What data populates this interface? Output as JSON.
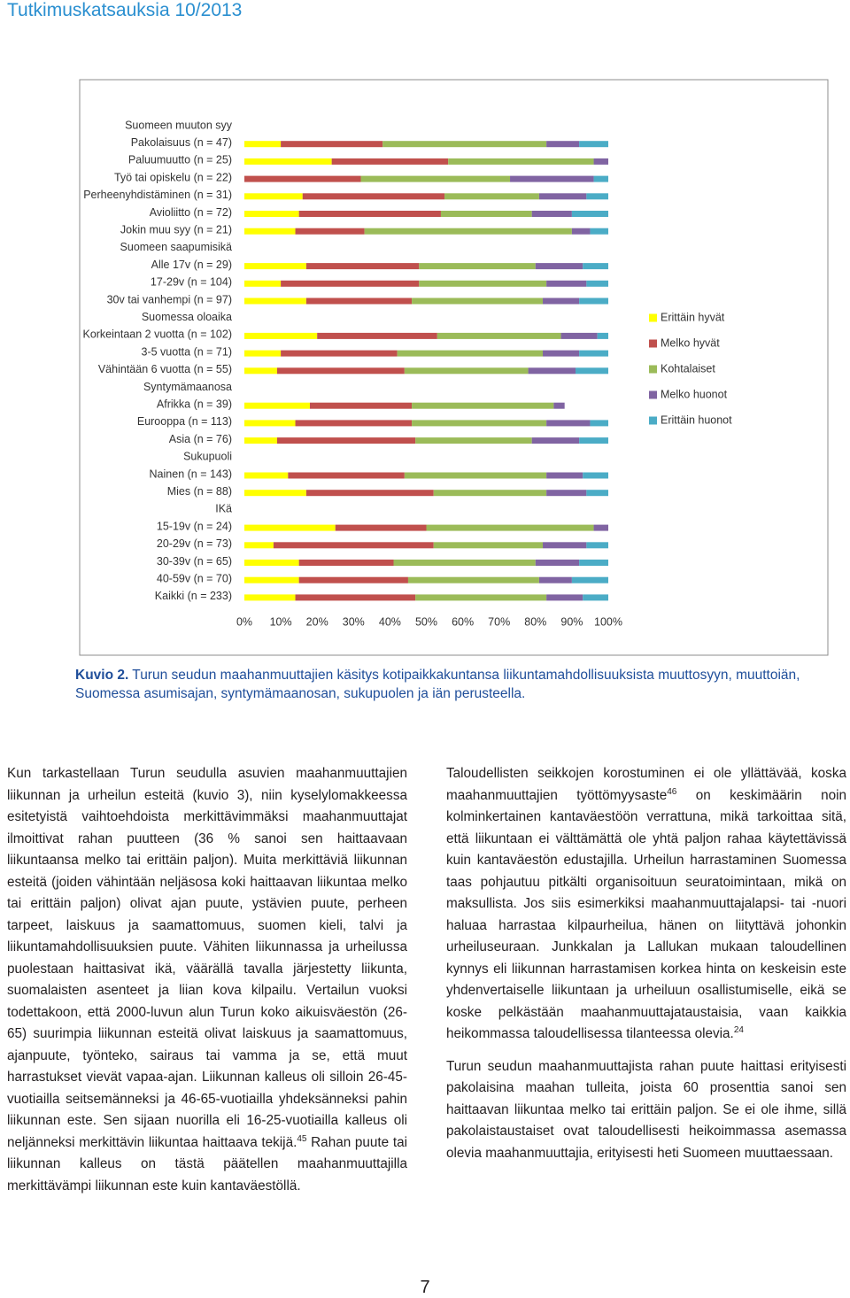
{
  "header": {
    "title": "Tutkimuskatsauksia 10/2013"
  },
  "chart_data": {
    "type": "stacked-bar-horizontal",
    "categories": [
      "Suomeen muuton syy",
      "Pakolaisuus (n = 47)",
      "Paluumuutto (n = 25)",
      "Työ tai opiskelu (n = 22)",
      "Perheenyhdistäminen (n = 31)",
      "Avioliitto (n = 72)",
      "Jokin muu syy (n = 21)",
      "Suomeen saapumisikä",
      "Alle 17v (n = 29)",
      "17-29v (n = 104)",
      "30v tai vanhempi (n = 97)",
      "Suomessa oloaika",
      "Korkeintaan 2 vuotta (n = 102)",
      "3-5 vuotta (n = 71)",
      "Vähintään 6 vuotta (n = 55)",
      "Syntymämaanosa",
      "Afrikka (n = 39)",
      "Eurooppa (n = 113)",
      "Asia (n = 76)",
      "Sukupuoli",
      "Nainen (n = 143)",
      "Mies (n = 88)",
      "IKä",
      "15-19v (n = 24)",
      "20-29v (n = 73)",
      "30-39v (n = 65)",
      "40-59v (n = 70)",
      "Kaikki (n = 233)"
    ],
    "series": [
      {
        "name": "Erittäin hyvät",
        "color": "#ffff00",
        "values": [
          null,
          10,
          24,
          0,
          16,
          15,
          14,
          null,
          17,
          10,
          17,
          null,
          20,
          10,
          9,
          null,
          18,
          14,
          9,
          null,
          12,
          17,
          null,
          25,
          8,
          15,
          15,
          14
        ]
      },
      {
        "name": "Melko hyvät",
        "color": "#c0504d",
        "values": [
          null,
          28,
          32,
          32,
          39,
          39,
          19,
          null,
          31,
          38,
          29,
          null,
          33,
          32,
          35,
          null,
          28,
          32,
          38,
          null,
          32,
          35,
          null,
          25,
          44,
          26,
          30,
          33
        ]
      },
      {
        "name": "Kohtalaiset",
        "color": "#9bbb59",
        "values": [
          null,
          45,
          40,
          41,
          26,
          25,
          57,
          null,
          32,
          35,
          36,
          null,
          34,
          40,
          34,
          null,
          39,
          37,
          32,
          null,
          39,
          31,
          null,
          46,
          30,
          39,
          36,
          36
        ]
      },
      {
        "name": "Melko huonot",
        "color": "#8064a2",
        "values": [
          null,
          9,
          4,
          23,
          13,
          11,
          5,
          null,
          13,
          11,
          10,
          null,
          10,
          10,
          13,
          null,
          3,
          12,
          13,
          null,
          10,
          11,
          null,
          4,
          12,
          12,
          9,
          10
        ]
      },
      {
        "name": "Erittäin huonot",
        "color": "#4bacc6",
        "values": [
          null,
          8,
          0,
          4,
          6,
          10,
          5,
          null,
          7,
          6,
          8,
          null,
          3,
          8,
          9,
          null,
          0,
          5,
          8,
          null,
          7,
          6,
          null,
          0,
          6,
          8,
          10,
          7
        ]
      }
    ],
    "xlim": [
      0,
      100
    ],
    "xticks": [
      {
        "value": 0,
        "label": "0%"
      },
      {
        "value": 10,
        "label": "10%"
      },
      {
        "value": 20,
        "label": "20%"
      },
      {
        "value": 30,
        "label": "30%"
      },
      {
        "value": 40,
        "label": "40%"
      },
      {
        "value": 50,
        "label": "50%"
      },
      {
        "value": 60,
        "label": "60%"
      },
      {
        "value": 70,
        "label": "70%"
      },
      {
        "value": 80,
        "label": "80%"
      },
      {
        "value": 90,
        "label": "90%"
      },
      {
        "value": 100,
        "label": "100%"
      }
    ],
    "legend": "right"
  },
  "caption": {
    "label": "Kuvio 2.",
    "text": "Turun seudun maahanmuuttajien käsitys kotipaikkakuntansa liikuntamahdollisuuksista muuttosyyn, muuttoiän, Suomessa asumisajan, syntymämaanosan, sukupuolen ja iän perusteella."
  },
  "body": {
    "left": [
      [
        {
          "text": "Kun tarkastellaan Turun seudulla asuvien maahanmuuttajien liikunnan ja urheilun esteitä (kuvio 3), niin kyselylomakkeessa esitetyistä vaihtoehdoista merkittävimmäksi maahanmuuttajat ilmoittivat rahan puutteen (36 % sanoi sen haittaavaan liikuntaansa melko tai erittäin paljon). Muita merkittäviä liikunnan esteitä (joiden vähintään neljäsosa koki haittaavan liikuntaa melko tai erittäin paljon) olivat ajan puute, ystävien puute, perheen tarpeet, laiskuus ja saamattomuus, suomen kieli, talvi ja liikuntamahdollisuuksien puute. Vähiten liikunnassa ja urheilussa puolestaan haittasivat ikä, väärällä tavalla järjestetty liikunta, suomalaisten asenteet ja liian kova kilpailu. Vertailun vuoksi todettakoon, että 2000-luvun alun Turun koko aikuisväestön (26-65) suurimpia liikunnan esteitä olivat laiskuus ja saamattomuus, ajanpuute, työnteko, sairaus tai vamma ja se, että muut harrastukset vievät vapaa-ajan. Liikunnan kalleus oli silloin 26-45-vuotiailla seitsemänneksi ja 46-65-vuotiailla yhdeksänneksi pahin liikunnan este. Sen sijaan nuorilla eli 16-25-vuotiailla kalleus oli neljänneksi merkittävin liikuntaa haittaava tekijä."
        },
        {
          "sup": "45"
        },
        {
          "text": " Rahan puute tai liikunnan kalleus on tästä päätellen maahanmuuttajilla merkittävämpi liikunnan este kuin kantaväestöllä."
        }
      ]
    ],
    "right": [
      [
        {
          "text": "Taloudellisten seikkojen korostuminen ei ole yllättävää, koska maahanmuuttajien työttömyysaste"
        },
        {
          "sup": "46"
        },
        {
          "text": " on keskimäärin noin kolminkertainen kantaväestöön verrattuna, mikä tarkoittaa sitä, että liikuntaan ei välttämättä ole yhtä paljon rahaa käytettävissä kuin kantaväestön edustajilla. Urheilun harrastaminen Suomessa taas pohjautuu pitkälti organisoituun seuratoimintaan, mikä on maksullista. Jos siis esimerkiksi maahanmuuttajalapsi- tai -nuori haluaa harrastaa kilpaurheilua, hänen on liityttävä johonkin urheiluseuraan. Junkkalan ja Lallukan mukaan taloudellinen kynnys eli liikunnan harrastamisen korkea hinta on keskeisin este yhdenvertaiselle liikuntaan ja urheiluun osallistumiselle, eikä se koske pelkästään maahanmuuttajataustaisia, vaan kaikkia heikommassa taloudellisessa tilanteessa olevia."
        },
        {
          "sup": "24"
        }
      ],
      [
        {
          "text": "Turun seudun maahanmuuttajista rahan puute haittasi erityisesti pakolaisina maahan tulleita, joista 60 prosenttia sanoi sen haittaavan liikuntaa melko tai erittäin paljon. Se ei ole ihme, sillä pakolaistaustaiset ovat taloudellisesti heikoimmassa asemassa olevia maahanmuuttajia, erityisesti heti Suomeen muuttaessaan."
        }
      ]
    ]
  },
  "footer": {
    "page": "7"
  }
}
